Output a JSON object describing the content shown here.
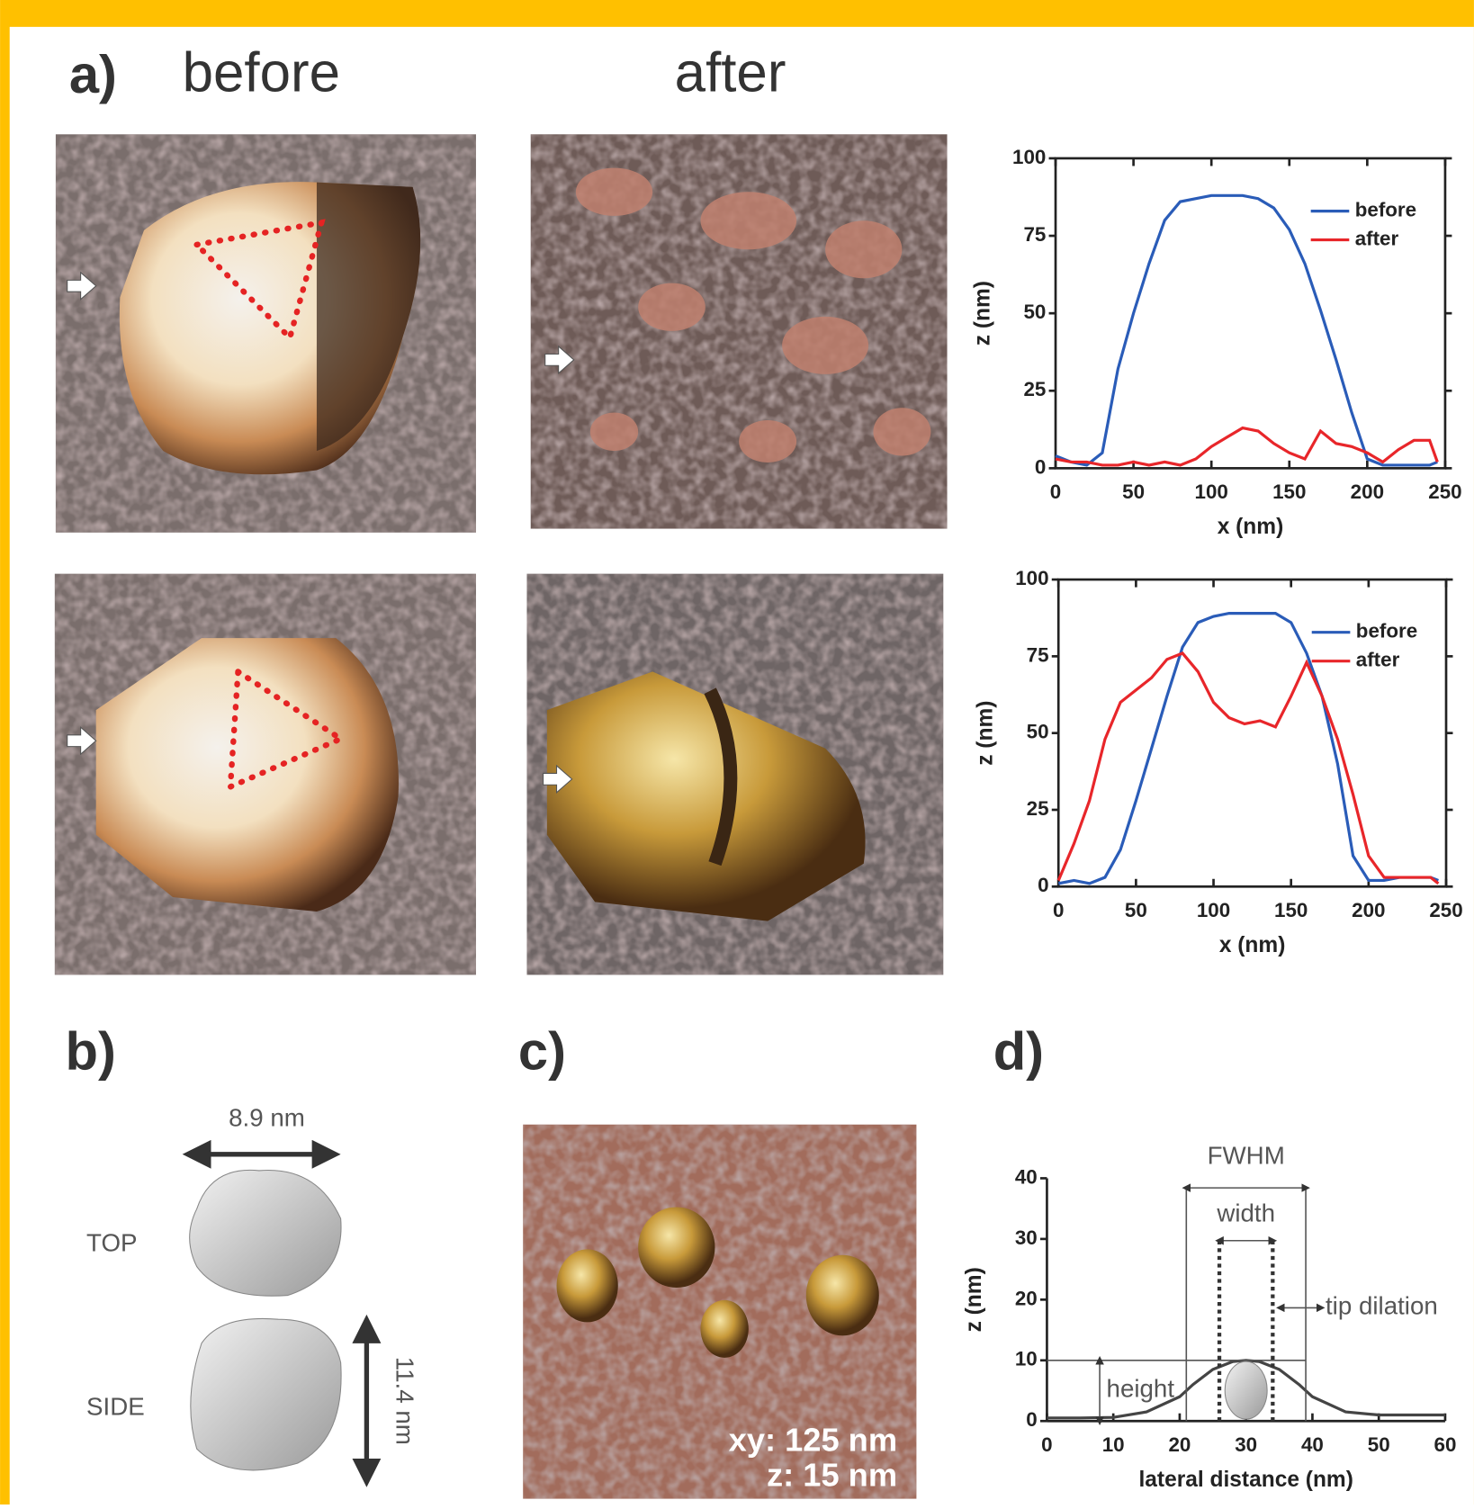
{
  "labels": {
    "panel_a": "a)",
    "before": "before",
    "after": "after",
    "panel_b": "b)",
    "panel_c": "c)",
    "panel_d": "d)",
    "width_b": "8.9 nm",
    "top": "TOP",
    "side": "SIDE",
    "height_b": "11.4 nm",
    "scale_xy": "xy: 125 nm",
    "scale_z": "z: 15 nm"
  },
  "chart_data": [
    {
      "type": "line",
      "xlabel": "x (nm)",
      "ylabel": "z (nm)",
      "xlim": [
        0,
        250
      ],
      "ylim": [
        0,
        100
      ],
      "xticks": [
        0,
        50,
        100,
        150,
        200,
        250
      ],
      "yticks": [
        0,
        25,
        50,
        75,
        100
      ],
      "box": true,
      "legend": "upper right",
      "x": [
        0,
        10,
        20,
        30,
        40,
        50,
        60,
        70,
        80,
        90,
        100,
        110,
        120,
        130,
        140,
        150,
        160,
        170,
        180,
        190,
        200,
        210,
        220,
        230,
        240,
        245
      ],
      "series": [
        {
          "name": "before",
          "color": "#2a5cb8",
          "values": [
            4,
            2,
            1,
            5,
            32,
            50,
            66,
            80,
            86,
            87,
            88,
            88,
            88,
            87,
            84,
            77,
            66,
            51,
            35,
            18,
            3,
            1,
            1,
            1,
            1,
            2
          ]
        },
        {
          "name": "after",
          "color": "#e8262a",
          "values": [
            3,
            2,
            2,
            1,
            1,
            2,
            1,
            2,
            1,
            3,
            7,
            10,
            13,
            12,
            8,
            5,
            3,
            12,
            8,
            7,
            5,
            2,
            6,
            9,
            9,
            2
          ]
        }
      ]
    },
    {
      "type": "line",
      "xlabel": "x (nm)",
      "ylabel": "z (nm)",
      "xlim": [
        0,
        250
      ],
      "ylim": [
        0,
        100
      ],
      "xticks": [
        0,
        50,
        100,
        150,
        200,
        250
      ],
      "yticks": [
        0,
        25,
        50,
        75,
        100
      ],
      "box": true,
      "legend": "upper right",
      "x": [
        0,
        10,
        20,
        30,
        40,
        50,
        60,
        70,
        80,
        90,
        100,
        110,
        120,
        130,
        140,
        150,
        160,
        170,
        180,
        190,
        200,
        210,
        220,
        230,
        240,
        245
      ],
      "series": [
        {
          "name": "before",
          "color": "#2a5cb8",
          "values": [
            1,
            2,
            1,
            3,
            12,
            28,
            45,
            62,
            78,
            86,
            88,
            89,
            89,
            89,
            89,
            86,
            76,
            62,
            40,
            10,
            2,
            2,
            3,
            3,
            3,
            2
          ]
        },
        {
          "name": "after",
          "color": "#e8262a",
          "values": [
            2,
            14,
            28,
            48,
            60,
            64,
            68,
            74,
            76,
            70,
            60,
            55,
            53,
            54,
            52,
            62,
            73,
            62,
            48,
            30,
            10,
            3,
            3,
            3,
            3,
            1
          ]
        }
      ]
    },
    {
      "type": "line",
      "xlabel": "lateral distance  (nm)",
      "ylabel": "z (nm)",
      "xlim": [
        0,
        60
      ],
      "ylim": [
        0,
        40
      ],
      "xticks": [
        0,
        10,
        20,
        30,
        40,
        50,
        60
      ],
      "yticks": [
        0,
        10,
        20,
        30,
        40
      ],
      "box": false,
      "x": [
        0,
        5,
        10,
        15,
        20,
        22,
        25,
        28,
        30,
        32,
        35,
        38,
        40,
        45,
        50,
        55,
        60
      ],
      "values": [
        0.5,
        0.5,
        0.6,
        1.5,
        4,
        6,
        8.5,
        9.8,
        10,
        9.8,
        8.5,
        6,
        4,
        1.5,
        1,
        1,
        1
      ],
      "color": "#444444",
      "annotations": [
        "FWHM",
        "width",
        "tip dilation",
        "height"
      ]
    }
  ]
}
